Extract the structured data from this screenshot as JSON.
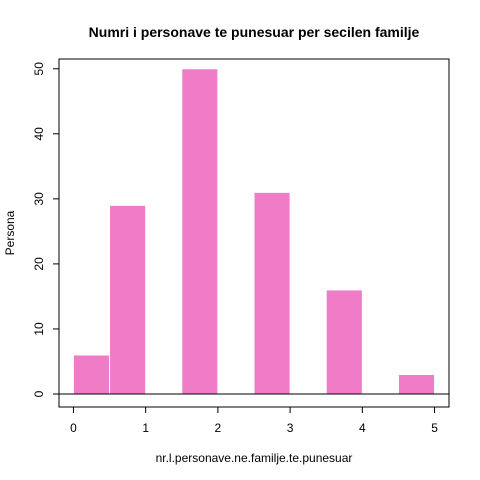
{
  "chart_data": {
    "type": "bar",
    "title": "Numri i personave te punesuar per secilen familje",
    "xlabel": "nr.l.personave.ne.familje.te.punesuar",
    "ylabel": "Persona",
    "bars": [
      {
        "x0": 0.0,
        "x1": 0.5,
        "value": 6
      },
      {
        "x0": 0.5,
        "x1": 1.0,
        "value": 29
      },
      {
        "x0": 1.5,
        "x1": 2.0,
        "value": 50
      },
      {
        "x0": 2.5,
        "x1": 3.0,
        "value": 31
      },
      {
        "x0": 3.5,
        "x1": 4.0,
        "value": 16
      },
      {
        "x0": 4.5,
        "x1": 5.0,
        "value": 3
      }
    ],
    "xticks": [
      "0",
      "1",
      "2",
      "3",
      "4",
      "5"
    ],
    "yticks": [
      "0",
      "10",
      "20",
      "30",
      "40",
      "50"
    ],
    "xlim": [
      -0.2,
      5.2
    ],
    "ylim": [
      -2,
      51.5
    ],
    "bar_color": "#f07cc8",
    "grid": false
  }
}
